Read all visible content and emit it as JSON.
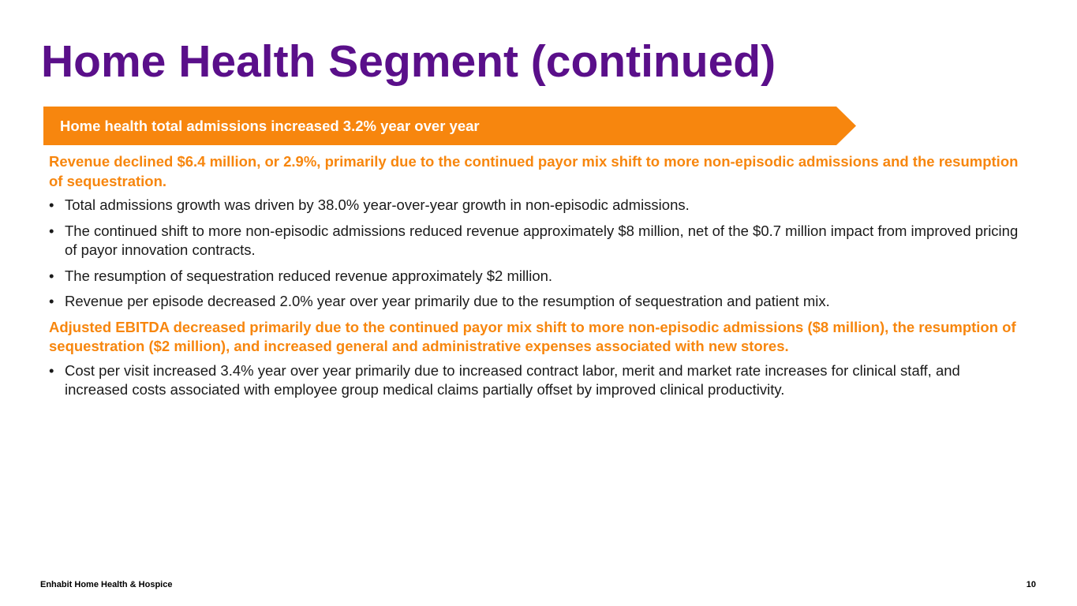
{
  "slide": {
    "title": "Home Health Segment (continued)",
    "banner": "Home health total admissions increased 3.2% year over year",
    "sections": [
      {
        "highlight": "Revenue declined $6.4 million, or 2.9%, primarily due to the continued payor mix shift to more non-episodic admissions and the resumption of sequestration.",
        "bullets": [
          "Total admissions growth was driven by 38.0% year-over-year growth in non-episodic admissions.",
          "The continued shift to more non-episodic admissions reduced revenue approximately $8 million, net of the $0.7 million impact from improved pricing of payor innovation contracts.",
          "The resumption of sequestration reduced revenue approximately $2 million.",
          "Revenue per episode decreased 2.0% year over year primarily due to the resumption of sequestration and patient mix."
        ]
      },
      {
        "highlight": "Adjusted EBITDA decreased primarily due to the continued payor mix shift to more non-episodic admissions ($8 million), the resumption of sequestration ($2 million), and increased general and administrative expenses associated with new stores.",
        "bullets": [
          "Cost per visit increased 3.4% year over year primarily due to increased contract labor, merit and market rate increases for clinical staff, and increased costs associated with employee group medical claims partially offset by improved clinical productivity."
        ]
      }
    ]
  },
  "footer": {
    "company": "Enhabit Home Health & Hospice",
    "page_number": "10"
  },
  "colors": {
    "title": "#5a0f8a",
    "accent": "#f7860e",
    "body_text": "#1a1a1a"
  }
}
